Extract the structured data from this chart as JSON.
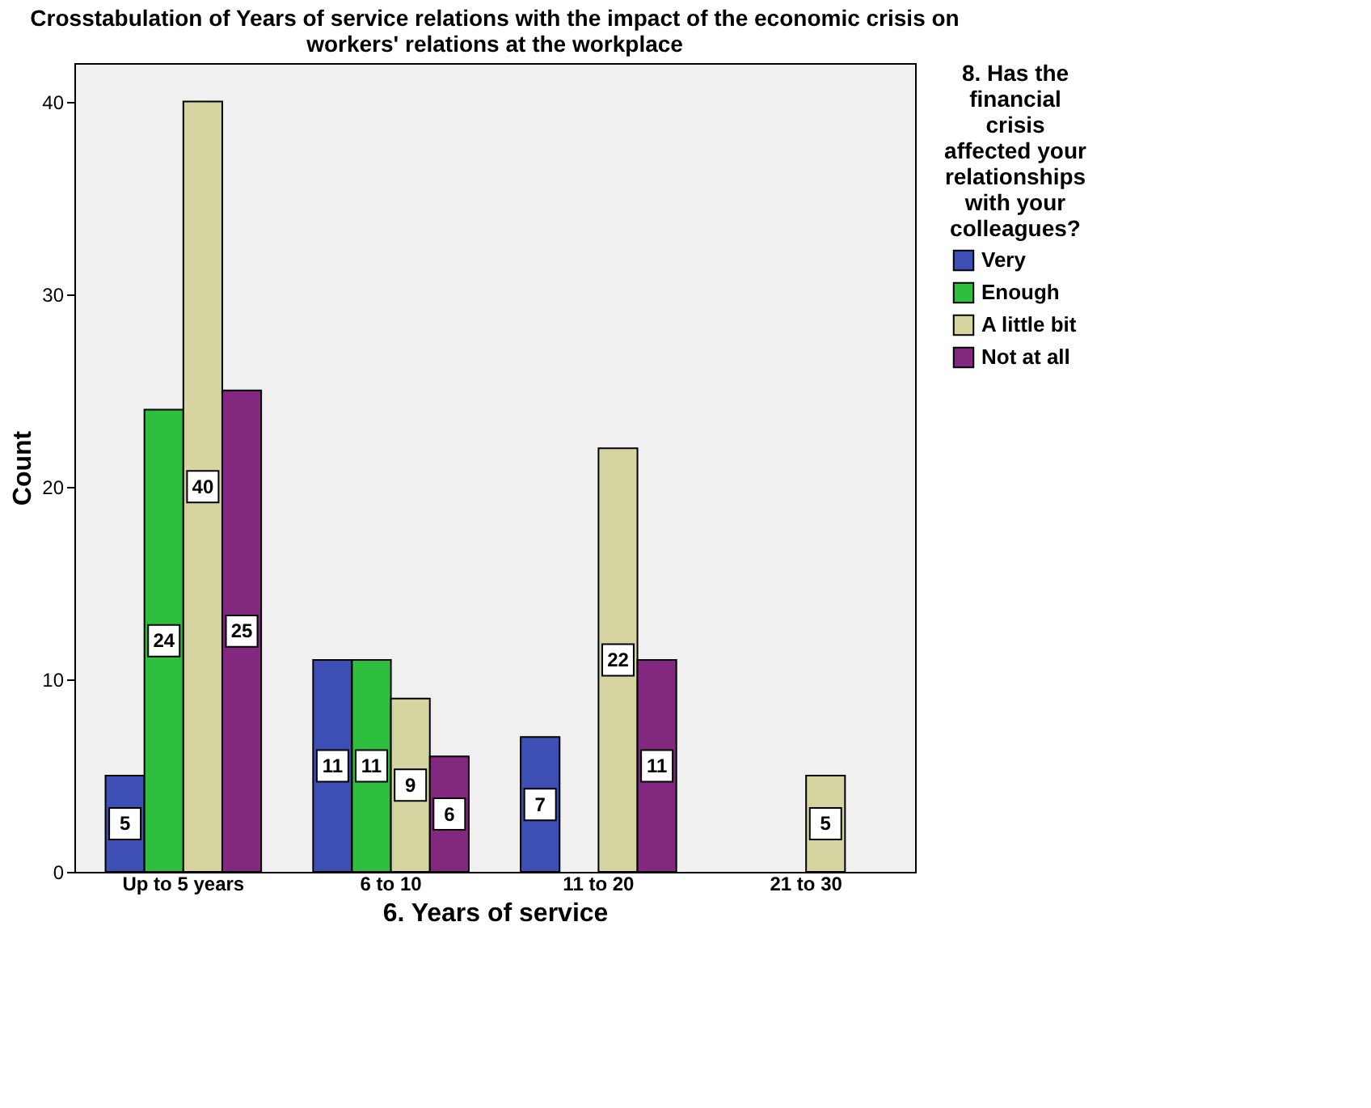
{
  "chart_data": {
    "type": "bar",
    "title": "Crosstabulation of Years of service relations with the impact of the economic crisis on workers' relations at the workplace",
    "xlabel": "6. Years of service",
    "ylabel": "Count",
    "legend_title": "8. Has the financial crisis affected your relationships with your colleagues?",
    "categories": [
      "Up to 5 years",
      "6 to 10",
      "11 to 20",
      "21 to 30"
    ],
    "series": [
      {
        "name": "Very",
        "color": "#3d4fb5",
        "values": [
          5,
          11,
          7,
          null
        ]
      },
      {
        "name": "Enough",
        "color": "#2fbf3e",
        "values": [
          24,
          11,
          null,
          null
        ]
      },
      {
        "name": "A little bit",
        "color": "#d6d4a0",
        "values": [
          40,
          9,
          22,
          5
        ]
      },
      {
        "name": "Not at all",
        "color": "#82287e",
        "values": [
          25,
          6,
          11,
          null
        ]
      }
    ],
    "ylim": [
      0,
      42
    ],
    "yticks": [
      0,
      10,
      20,
      30,
      40
    ],
    "grid": false,
    "legend": "top right",
    "data_labels": true
  }
}
